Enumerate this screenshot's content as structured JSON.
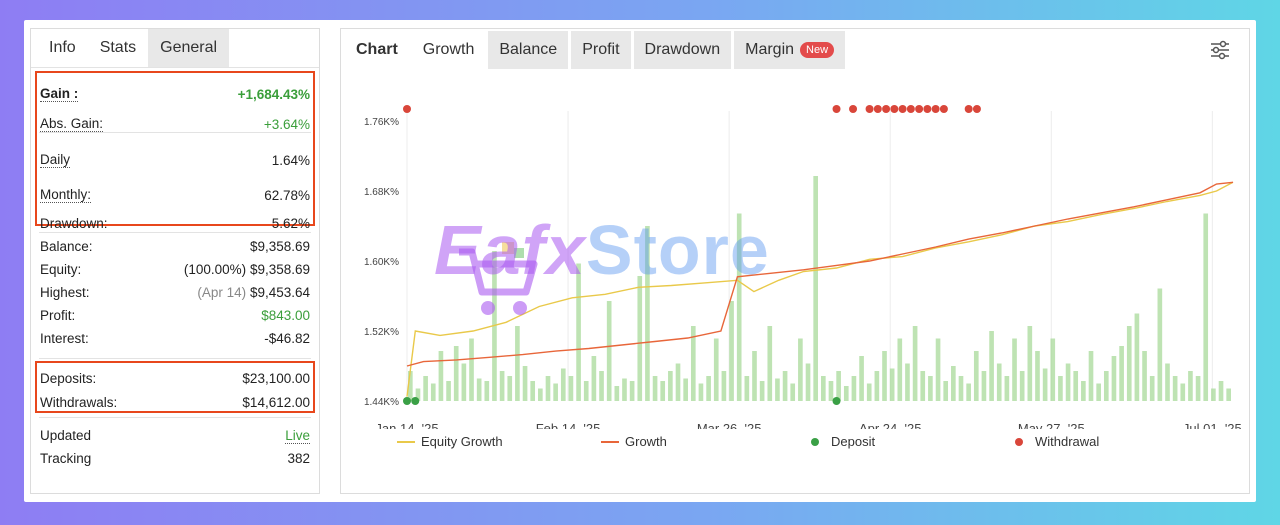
{
  "left_tabs": [
    "Info",
    "Stats",
    "General"
  ],
  "stats_top": [
    {
      "label": "Gain :",
      "value": "+1,684.43%",
      "green": true,
      "bold": true
    },
    {
      "label": "Abs. Gain:",
      "value": "+3.64%",
      "green": true
    },
    {
      "label": "Daily",
      "value": "1.64%"
    },
    {
      "label": "Monthly:",
      "value": "62.78%"
    },
    {
      "label": "Drawdown:",
      "value": "5.62%"
    }
  ],
  "stats_mid": [
    {
      "label": "Balance:",
      "value": "$9,358.69"
    },
    {
      "label": "Equity:",
      "pre": "(100.00%)",
      "value": "$9,358.69"
    },
    {
      "label": "Highest:",
      "pre": "(Apr 14)",
      "value": "$9,453.64"
    },
    {
      "label": "Profit:",
      "value": "$843.00",
      "green": true
    },
    {
      "label": "Interest:",
      "value": "-$46.82"
    }
  ],
  "stats_dw": [
    {
      "label": "Deposits:",
      "value": "$23,100.00"
    },
    {
      "label": "Withdrawals:",
      "value": "$14,612.00"
    }
  ],
  "stats_bottom": [
    {
      "label": "Updated",
      "value": "Live",
      "green": true
    },
    {
      "label": "Tracking",
      "value": "382"
    }
  ],
  "right_tabs": [
    "Chart",
    "Growth",
    "Balance",
    "Profit",
    "Drawdown",
    "Margin"
  ],
  "new_badge": "New",
  "watermark": {
    "brand": "Eafx",
    "suffix": "Store"
  },
  "colors": {
    "equity": "#e9c94a",
    "growth": "#e8663a",
    "deposit": "#3aa046",
    "withdrawal": "#d9463a",
    "bars": "#a8d99a"
  },
  "chart_data": {
    "type": "line",
    "y_ticks": [
      "1.76K%",
      "1.68K%",
      "1.60K%",
      "1.52K%",
      "1.44K%"
    ],
    "x_ticks": [
      "Jan 14, '25",
      "Feb 14, '25",
      "Mar 26, '25",
      "Apr 24, '25",
      "May 27, '25",
      "Jul 01, '25"
    ],
    "legend": [
      "Equity Growth",
      "Growth",
      "Deposit",
      "Withdrawal"
    ],
    "growth": [
      [
        0,
        1480
      ],
      [
        0.02,
        1485
      ],
      [
        0.06,
        1487
      ],
      [
        0.1,
        1490
      ],
      [
        0.14,
        1493
      ],
      [
        0.18,
        1497
      ],
      [
        0.22,
        1500
      ],
      [
        0.26,
        1504
      ],
      [
        0.3,
        1508
      ],
      [
        0.34,
        1512
      ],
      [
        0.38,
        1520
      ],
      [
        0.4,
        1582
      ],
      [
        0.44,
        1586
      ],
      [
        0.48,
        1590
      ],
      [
        0.52,
        1595
      ],
      [
        0.56,
        1600
      ],
      [
        0.6,
        1608
      ],
      [
        0.64,
        1616
      ],
      [
        0.68,
        1625
      ],
      [
        0.72,
        1632
      ],
      [
        0.76,
        1640
      ],
      [
        0.8,
        1648
      ],
      [
        0.84,
        1655
      ],
      [
        0.88,
        1662
      ],
      [
        0.92,
        1670
      ],
      [
        0.96,
        1678
      ],
      [
        0.98,
        1688
      ],
      [
        1.0,
        1690
      ]
    ],
    "equity": [
      [
        0,
        1445
      ],
      [
        0.01,
        1520
      ],
      [
        0.04,
        1515
      ],
      [
        0.08,
        1520
      ],
      [
        0.12,
        1530
      ],
      [
        0.16,
        1548
      ],
      [
        0.2,
        1558
      ],
      [
        0.24,
        1562
      ],
      [
        0.28,
        1570
      ],
      [
        0.32,
        1572
      ],
      [
        0.36,
        1575
      ],
      [
        0.4,
        1578
      ],
      [
        0.42,
        1565
      ],
      [
        0.45,
        1578
      ],
      [
        0.48,
        1588
      ],
      [
        0.52,
        1592
      ],
      [
        0.56,
        1602
      ],
      [
        0.6,
        1605
      ],
      [
        0.64,
        1615
      ],
      [
        0.68,
        1622
      ],
      [
        0.72,
        1630
      ],
      [
        0.76,
        1640
      ],
      [
        0.8,
        1645
      ],
      [
        0.84,
        1653
      ],
      [
        0.88,
        1660
      ],
      [
        0.92,
        1668
      ],
      [
        0.96,
        1675
      ],
      [
        0.98,
        1680
      ],
      [
        1.0,
        1690
      ]
    ],
    "bars": [
      0.12,
      0.05,
      0.1,
      0.07,
      0.2,
      0.08,
      0.22,
      0.15,
      0.25,
      0.09,
      0.08,
      0.6,
      0.12,
      0.1,
      0.3,
      0.14,
      0.08,
      0.05,
      0.1,
      0.07,
      0.13,
      0.1,
      0.55,
      0.08,
      0.18,
      0.12,
      0.4,
      0.06,
      0.09,
      0.08,
      0.5,
      0.7,
      0.1,
      0.08,
      0.12,
      0.15,
      0.09,
      0.3,
      0.07,
      0.1,
      0.25,
      0.12,
      0.4,
      0.75,
      0.1,
      0.2,
      0.08,
      0.3,
      0.09,
      0.12,
      0.07,
      0.25,
      0.15,
      0.9,
      0.1,
      0.08,
      0.12,
      0.06,
      0.1,
      0.18,
      0.07,
      0.12,
      0.2,
      0.13,
      0.25,
      0.15,
      0.3,
      0.12,
      0.1,
      0.25,
      0.08,
      0.14,
      0.1,
      0.07,
      0.2,
      0.12,
      0.28,
      0.15,
      0.1,
      0.25,
      0.12,
      0.3,
      0.2,
      0.13,
      0.25,
      0.1,
      0.15,
      0.12,
      0.08,
      0.2,
      0.07,
      0.12,
      0.18,
      0.22,
      0.3,
      0.35,
      0.2,
      0.1,
      0.45,
      0.15,
      0.1,
      0.07,
      0.12,
      0.1,
      0.75,
      0.05,
      0.08,
      0.05
    ],
    "withdrawals_x": [
      0,
      0.52,
      0.54,
      0.56,
      0.57,
      0.58,
      0.59,
      0.6,
      0.61,
      0.62,
      0.63,
      0.64,
      0.65,
      0.68,
      0.69
    ],
    "deposits_x": [
      0,
      0.01,
      0.52
    ]
  }
}
